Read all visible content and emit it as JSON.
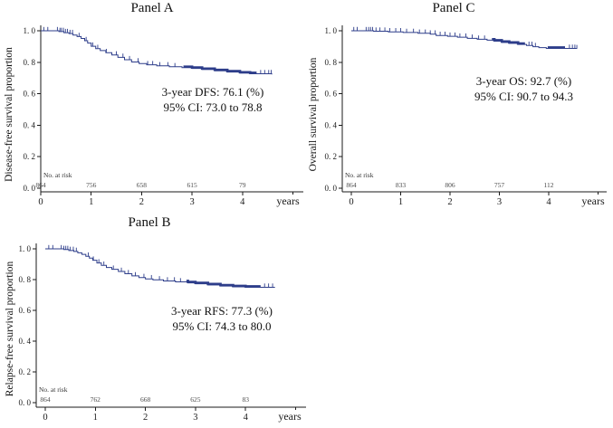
{
  "chart_data": {
    "type": "line",
    "subtype": "kaplan-meier-survival",
    "curve_color": "#2d3d8a",
    "axis_color": "#1a1a1a",
    "risk_color": "#4a4a4a",
    "x_label": "years",
    "x_ticks": [
      {
        "label": "0",
        "value": 0
      },
      {
        "label": "1",
        "value": 1
      },
      {
        "label": "2",
        "value": 2
      },
      {
        "label": "3",
        "value": 3
      },
      {
        "label": "4",
        "value": 4
      }
    ],
    "y_ticks": [
      {
        "label": "1. 0",
        "value": 1.0
      },
      {
        "label": "0. 8",
        "value": 0.8
      },
      {
        "label": "0. 6",
        "value": 0.6
      },
      {
        "label": "0. 4",
        "value": 0.4
      },
      {
        "label": "0. 2",
        "value": 0.2
      },
      {
        "label": "0. 0",
        "value": 0.0
      }
    ],
    "x_range": [
      0,
      4.6
    ],
    "y_range": [
      0.0,
      1.0
    ],
    "grid": false,
    "legend": false,
    "panels": [
      {
        "id": "A",
        "title": "Panel A",
        "ylabel": "Disease-free survival proportion",
        "annotation": {
          "line1": "3-year DFS: 76.1 (%)",
          "line2": "95% CI: 73.0 to 78.8"
        },
        "risk_label": "No. at risk",
        "risk_counts": [
          "864",
          "756",
          "658",
          "615",
          "79"
        ],
        "curve": [
          [
            0,
            1.0
          ],
          [
            0.3,
            1.0
          ],
          [
            0.36,
            0.995
          ],
          [
            0.46,
            0.988
          ],
          [
            0.56,
            0.982
          ],
          [
            0.64,
            0.973
          ],
          [
            0.72,
            0.963
          ],
          [
            0.8,
            0.951
          ],
          [
            0.87,
            0.937
          ],
          [
            0.93,
            0.922
          ],
          [
            1.0,
            0.902
          ],
          [
            1.09,
            0.887
          ],
          [
            1.18,
            0.874
          ],
          [
            1.29,
            0.861
          ],
          [
            1.41,
            0.846
          ],
          [
            1.53,
            0.831
          ],
          [
            1.66,
            0.816
          ],
          [
            1.8,
            0.802
          ],
          [
            1.95,
            0.792
          ],
          [
            2.1,
            0.784
          ],
          [
            2.3,
            0.777
          ],
          [
            2.55,
            0.771
          ],
          [
            2.8,
            0.766
          ],
          [
            3.0,
            0.761
          ],
          [
            3.2,
            0.754
          ],
          [
            3.45,
            0.746
          ],
          [
            3.7,
            0.738
          ],
          [
            3.95,
            0.731
          ],
          [
            4.15,
            0.727
          ],
          [
            4.58,
            0.723
          ]
        ],
        "censor_ticks": [
          0.06,
          0.14,
          0.33,
          0.38,
          0.41,
          0.45,
          0.49,
          0.53,
          0.58,
          0.63,
          0.76,
          0.9,
          1.03,
          1.13,
          1.3,
          1.5,
          1.63,
          1.76,
          1.93,
          2.12,
          2.22,
          2.36,
          2.52,
          2.66,
          4.36,
          4.44,
          4.52,
          4.57
        ],
        "censor_bands": [
          [
            2.83,
            4.28
          ]
        ]
      },
      {
        "id": "C",
        "title": "Panel C",
        "ylabel": "Overall survival proportion",
        "annotation": {
          "line1": "3-year OS: 92.7 (%)",
          "line2": "95% CI: 90.7 to 94.3"
        },
        "risk_label": "No. at risk",
        "risk_counts": [
          "864",
          "833",
          "806",
          "757",
          "112"
        ],
        "curve": [
          [
            0,
            1.0
          ],
          [
            0.45,
            0.997
          ],
          [
            0.75,
            0.993
          ],
          [
            1.05,
            0.989
          ],
          [
            1.35,
            0.984
          ],
          [
            1.6,
            0.979
          ],
          [
            1.72,
            0.97
          ],
          [
            1.95,
            0.965
          ],
          [
            2.15,
            0.959
          ],
          [
            2.35,
            0.952
          ],
          [
            2.55,
            0.946
          ],
          [
            2.75,
            0.94
          ],
          [
            2.9,
            0.934
          ],
          [
            3.05,
            0.926
          ],
          [
            3.2,
            0.92
          ],
          [
            3.38,
            0.913
          ],
          [
            3.55,
            0.907
          ],
          [
            3.68,
            0.899
          ],
          [
            3.8,
            0.893
          ],
          [
            3.95,
            0.888
          ],
          [
            4.57,
            0.886
          ]
        ],
        "censor_ticks": [
          0.05,
          0.12,
          0.3,
          0.35,
          0.39,
          0.43,
          0.5,
          0.58,
          0.68,
          0.78,
          0.9,
          1.0,
          1.12,
          1.26,
          1.38,
          1.5,
          1.6,
          1.7,
          1.8,
          1.9,
          2.0,
          2.1,
          2.2,
          2.32,
          2.45,
          2.58,
          2.7,
          3.6,
          3.66,
          3.73,
          4.42,
          4.48,
          4.53,
          4.57
        ],
        "censor_bands": [
          [
            2.85,
            3.52
          ],
          [
            3.98,
            4.33
          ]
        ]
      },
      {
        "id": "B",
        "title": "Panel B",
        "ylabel": "Relapse-free survival proportion",
        "annotation": {
          "line1": "3-year RFS: 77.3 (%)",
          "line2": "95% CI: 74.3 to 80.0"
        },
        "risk_label": "No. at risk",
        "risk_counts": [
          "864",
          "762",
          "668",
          "625",
          "83"
        ],
        "curve": [
          [
            0,
            1.0
          ],
          [
            0.3,
            1.0
          ],
          [
            0.37,
            0.995
          ],
          [
            0.47,
            0.989
          ],
          [
            0.57,
            0.983
          ],
          [
            0.65,
            0.974
          ],
          [
            0.73,
            0.964
          ],
          [
            0.81,
            0.952
          ],
          [
            0.88,
            0.94
          ],
          [
            0.95,
            0.926
          ],
          [
            1.03,
            0.908
          ],
          [
            1.12,
            0.893
          ],
          [
            1.22,
            0.879
          ],
          [
            1.33,
            0.867
          ],
          [
            1.46,
            0.853
          ],
          [
            1.59,
            0.838
          ],
          [
            1.73,
            0.824
          ],
          [
            1.87,
            0.813
          ],
          [
            2.0,
            0.805
          ],
          [
            2.15,
            0.798
          ],
          [
            2.36,
            0.791
          ],
          [
            2.6,
            0.785
          ],
          [
            2.85,
            0.779
          ],
          [
            3.0,
            0.773
          ],
          [
            3.25,
            0.765
          ],
          [
            3.5,
            0.758
          ],
          [
            3.75,
            0.753
          ],
          [
            4.0,
            0.75
          ],
          [
            4.58,
            0.748
          ]
        ],
        "censor_ticks": [
          0.07,
          0.15,
          0.32,
          0.37,
          0.41,
          0.45,
          0.5,
          0.56,
          0.62,
          0.86,
          0.96,
          1.07,
          1.17,
          1.36,
          1.52,
          1.66,
          1.8,
          1.97,
          2.12,
          2.28,
          2.44,
          2.58,
          2.7,
          4.38,
          4.46,
          4.54
        ],
        "censor_bands": [
          [
            2.82,
            4.3
          ]
        ]
      }
    ]
  }
}
